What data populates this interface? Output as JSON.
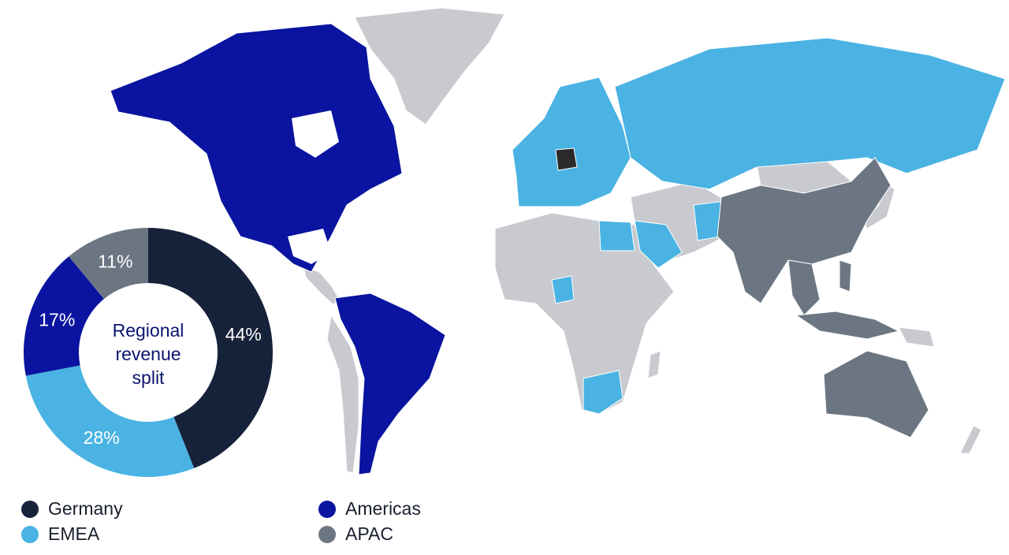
{
  "chart_data": {
    "type": "pie",
    "variant": "donut",
    "center_label": [
      "Regional",
      "revenue",
      "split"
    ],
    "start": "top",
    "direction": "clockwise",
    "slices": [
      {
        "name": "Germany",
        "value": 44,
        "label": "44%",
        "color": "#16213a"
      },
      {
        "name": "EMEA",
        "value": 28,
        "label": "28%",
        "color": "#4ab3e3"
      },
      {
        "name": "Americas",
        "value": 17,
        "label": "17%",
        "color": "#0a14a0"
      },
      {
        "name": "APAC",
        "value": 11,
        "label": "11%",
        "color": "#6b7682"
      }
    ],
    "legend": [
      "Germany",
      "EMEA",
      "Americas",
      "APAC"
    ],
    "legend_placement": "bottom",
    "background_map": "world map with countries colored by region",
    "map_colors": {
      "other": "#c8cacf",
      "germany": "#2b2b2e"
    }
  }
}
